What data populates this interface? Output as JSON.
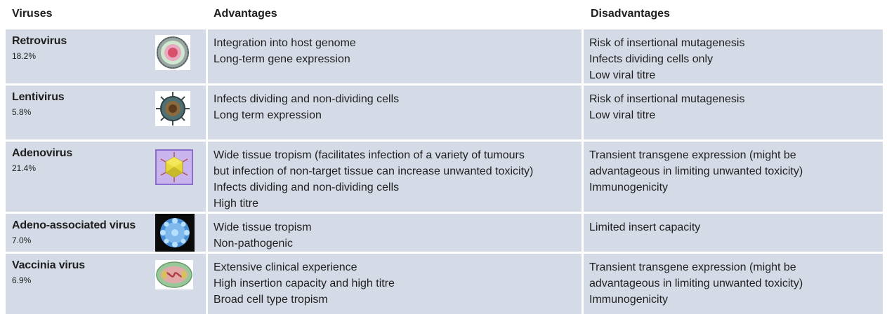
{
  "header": {
    "viruses": "Viruses",
    "advantages": "Advantages",
    "disadvantages": "Disadvantages"
  },
  "rows": [
    {
      "name": "Retrovirus",
      "percent": "18.2%",
      "icon": "retrovirus-icon",
      "advantages": [
        "Integration into host genome",
        "Long-term gene expression"
      ],
      "disadvantages": [
        "Risk of insertional mutagenesis",
        "Infects dividing cells only",
        "Low viral titre"
      ]
    },
    {
      "name": "Lentivirus",
      "percent": "5.8%",
      "icon": "lentivirus-icon",
      "advantages": [
        "Infects dividing and non-dividing cells",
        "Long term expression"
      ],
      "disadvantages": [
        "Risk of insertional mutagenesis",
        "Low viral titre"
      ]
    },
    {
      "name": "Adenovirus",
      "percent": "21.4%",
      "icon": "adenovirus-icon",
      "advantages": [
        "Wide tissue tropism (facilitates infection of a variety of tumours",
        "but infection of non-target tissue can increase unwanted toxicity)",
        "Infects dividing and non-dividing cells",
        "High titre"
      ],
      "disadvantages": [
        "Transient transgene expression (might be",
        "advantageous in limiting unwanted toxicity)",
        "Immunogenicity"
      ]
    },
    {
      "name": "Adeno-associated virus",
      "percent": "7.0%",
      "icon": "aav-icon",
      "advantages": [
        "Wide tissue tropism",
        "Non-pathogenic"
      ],
      "disadvantages": [
        "Limited insert capacity"
      ]
    },
    {
      "name": "Vaccinia virus",
      "percent": "6.9%",
      "icon": "vaccinia-icon",
      "advantages": [
        "Extensive clinical experience",
        "High insertion capacity and high titre",
        "Broad cell type tropism"
      ],
      "disadvantages": [
        "Transient transgene expression (might be",
        "advantageous in limiting unwanted toxicity)",
        "Immunogenicity"
      ]
    }
  ],
  "colors": {
    "row_background": "#d5dbe6",
    "separator": "#ffffff"
  }
}
